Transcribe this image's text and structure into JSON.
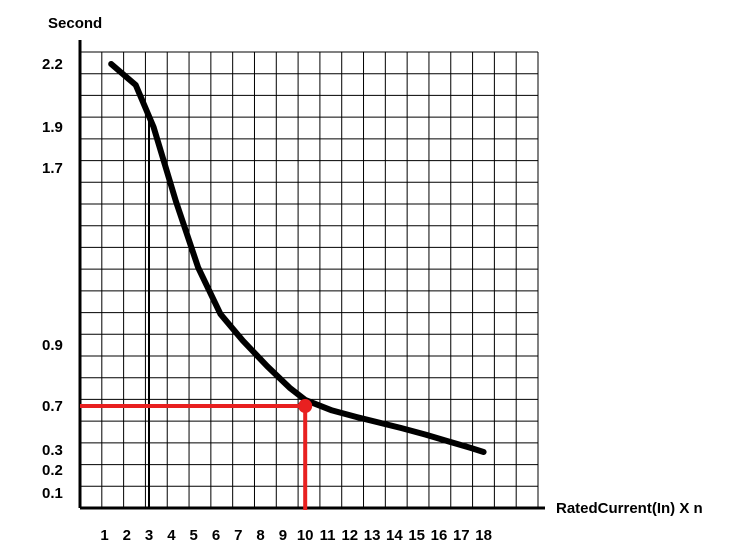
{
  "chart_data": {
    "type": "line",
    "title": "",
    "ylabel": "Second",
    "xlabel": "RatedCurrent(In) X n",
    "x_ticks": [
      "1",
      "2",
      "3",
      "4",
      "5",
      "6",
      "7",
      "8",
      "9",
      "10",
      "11",
      "12",
      "13",
      "14",
      "15",
      "16",
      "17",
      "18"
    ],
    "y_ticks": [
      "2.2",
      "1.9",
      "1.7",
      "0.9",
      "0.7",
      "0.3",
      "0.2",
      "0.1"
    ],
    "series": [
      {
        "color": "#000000",
        "points": [
          [
            1.3,
            2.2
          ],
          [
            2.4,
            2.1
          ],
          [
            3.2,
            1.9
          ],
          [
            4.2,
            1.55
          ],
          [
            5.2,
            1.25
          ],
          [
            6.2,
            1.04
          ],
          [
            7.2,
            0.92
          ],
          [
            8.3,
            0.83
          ],
          [
            9.3,
            0.76
          ],
          [
            10.0,
            0.72
          ],
          [
            11.2,
            0.66
          ],
          [
            12.3,
            0.6
          ],
          [
            13.3,
            0.55
          ],
          [
            14.3,
            0.5
          ],
          [
            15.4,
            0.44
          ],
          [
            16.4,
            0.38
          ],
          [
            17.4,
            0.32
          ],
          [
            18.0,
            0.29
          ]
        ]
      }
    ],
    "highlight": {
      "x": 10,
      "y": 0.7,
      "color": "#e82020"
    },
    "grid": true
  }
}
